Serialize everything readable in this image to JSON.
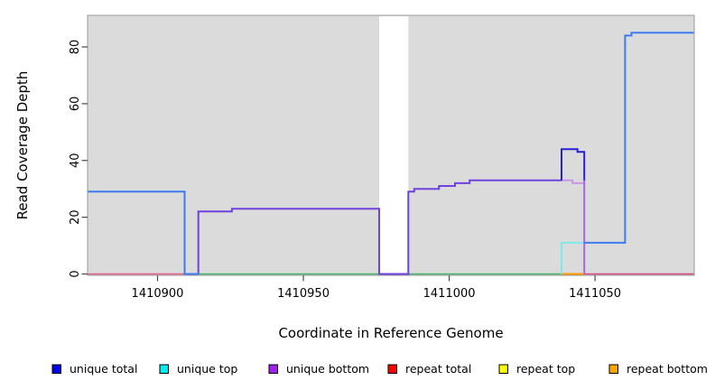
{
  "figure": {
    "x_axis_label": "Coordinate in Reference Genome",
    "y_axis_label": "Read Coverage Depth"
  },
  "chart_data": {
    "type": "line",
    "subtype": "step-coverage",
    "title": "",
    "xlabel": "Coordinate in Reference Genome",
    "ylabel": "Read Coverage Depth",
    "xlim": [
      1410876,
      1411084
    ],
    "ylim": [
      0,
      91
    ],
    "grid": false,
    "panel_background": "#DBDBDB",
    "frame_color": "#9A9A9A",
    "tick_color": "#4A4A4A",
    "x_ticks": [
      {
        "label": "1410900",
        "value": 1410900
      },
      {
        "label": "1410950",
        "value": 1410950
      },
      {
        "label": "1411000",
        "value": 1411000
      },
      {
        "label": "1411050",
        "value": 1411050
      }
    ],
    "y_ticks": [
      {
        "label": "0",
        "value": 0
      },
      {
        "label": "20",
        "value": 20
      },
      {
        "label": "40",
        "value": 40
      },
      {
        "label": "60",
        "value": 60
      },
      {
        "label": "80",
        "value": 80
      }
    ],
    "gap_region": {
      "x1": 1410976,
      "x2": 1410986,
      "color": "#FFFFFF"
    },
    "series": [
      {
        "name": "zero-line-left-pink",
        "color": "#E06287",
        "width": 1.6,
        "points": [
          [
            1410876,
            0
          ],
          [
            1410914,
            0
          ]
        ]
      },
      {
        "name": "zero-line-mid-green",
        "color": "#46B26B",
        "width": 1.6,
        "points": [
          [
            1410914,
            0
          ],
          [
            1411038.5,
            0
          ]
        ]
      },
      {
        "name": "zero-line-repeat-orange",
        "color": "#FF9900",
        "width": 2,
        "points": [
          [
            1411038.5,
            0
          ],
          [
            1411046.3,
            0
          ]
        ]
      },
      {
        "name": "zero-line-right-crimson",
        "color": "#D2487E",
        "width": 1.6,
        "points": [
          [
            1411046.3,
            0
          ],
          [
            1411084,
            0
          ]
        ]
      },
      {
        "name": "unique-top-cyan",
        "color": "#7CE9EC",
        "width": 2,
        "points": [
          [
            1411038.5,
            0
          ],
          [
            1411038.5,
            11
          ],
          [
            1411046.3,
            11
          ]
        ]
      },
      {
        "name": "unique-bottom-main",
        "color": "#6E42DE",
        "width": 2,
        "points": [
          [
            1410914,
            0
          ],
          [
            1410914,
            22
          ],
          [
            1410925.5,
            22
          ],
          [
            1410925.5,
            23
          ],
          [
            1410976,
            23
          ],
          [
            1410976,
            0
          ],
          [
            1410986,
            0
          ],
          [
            1410986,
            29
          ],
          [
            1410988,
            29
          ],
          [
            1410988,
            30
          ],
          [
            1410996.5,
            30
          ],
          [
            1410996.5,
            31
          ],
          [
            1411002,
            31
          ],
          [
            1411002,
            32
          ],
          [
            1411007,
            32
          ],
          [
            1411007,
            33
          ],
          [
            1411038.5,
            33
          ]
        ]
      },
      {
        "name": "unique-bottom-tail",
        "color": "#C897E6",
        "width": 2,
        "points": [
          [
            1411038.5,
            33
          ],
          [
            1411042.3,
            33
          ],
          [
            1411042.3,
            32
          ],
          [
            1411046.3,
            32
          ]
        ]
      },
      {
        "name": "unique-bottom-drop",
        "color": "#A866D8",
        "width": 2,
        "points": [
          [
            1411046.3,
            33
          ],
          [
            1411046.3,
            0
          ]
        ]
      },
      {
        "name": "unique-total-peak",
        "color": "#2620D2",
        "width": 2,
        "points": [
          [
            1411038.5,
            33
          ],
          [
            1411038.5,
            44
          ],
          [
            1411044,
            44
          ],
          [
            1411044,
            43
          ],
          [
            1411046.3,
            43
          ],
          [
            1411046.3,
            33
          ]
        ]
      },
      {
        "name": "unique-total-left",
        "color": "#3D7BF0",
        "width": 2,
        "points": [
          [
            1410876,
            29
          ],
          [
            1410909.3,
            29
          ],
          [
            1410909.3,
            0
          ],
          [
            1410914,
            0
          ]
        ]
      },
      {
        "name": "unique-total-right",
        "color": "#3D7BF0",
        "width": 2,
        "points": [
          [
            1411046.3,
            11
          ],
          [
            1411060.3,
            11
          ],
          [
            1411060.3,
            84
          ],
          [
            1411062.5,
            84
          ],
          [
            1411062.5,
            85
          ],
          [
            1411084,
            85
          ]
        ]
      }
    ],
    "legend": {
      "position": "bottom",
      "swatch_border": "#000000",
      "items": [
        {
          "label": "unique total",
          "color": "#0000EE"
        },
        {
          "label": "unique top",
          "color": "#00EEEE"
        },
        {
          "label": "unique bottom",
          "color": "#A020F0"
        },
        {
          "label": "repeat total",
          "color": "#FF0000"
        },
        {
          "label": "repeat top",
          "color": "#FFFF00"
        },
        {
          "label": "repeat bottom",
          "color": "#FFA500"
        }
      ]
    }
  }
}
